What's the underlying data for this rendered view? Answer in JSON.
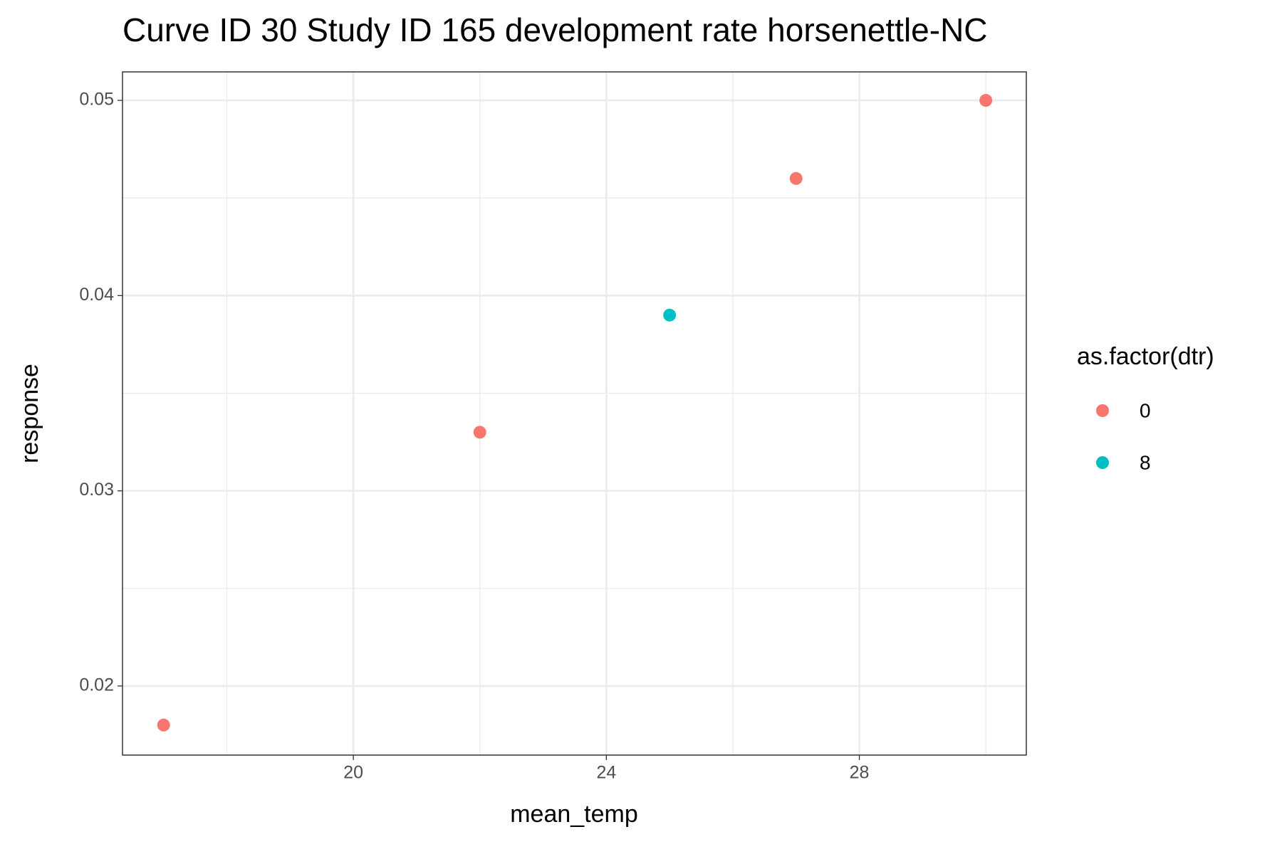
{
  "chart_data": {
    "type": "scatter",
    "title": "Curve ID 30 Study ID 165 development rate horsenettle-NC",
    "x_label": "mean_temp",
    "y_label": "response",
    "legend_title": "as.factor(dtr)",
    "legend_position": "right",
    "series": [
      {
        "name": "0",
        "color": "#f8766d",
        "x": [
          17,
          22,
          27,
          30
        ],
        "values": [
          0.018,
          0.033,
          0.046,
          0.05
        ]
      },
      {
        "name": "8",
        "color": "#00bfc4",
        "x": [
          25
        ],
        "values": [
          0.039
        ]
      }
    ],
    "xlim": [
      16.35,
      30.64
    ],
    "ylim": [
      0.01646,
      0.05146
    ],
    "xticks": [
      20,
      24,
      28
    ],
    "yticks": [
      0.02,
      0.03,
      0.04,
      0.05
    ],
    "grid": true
  }
}
